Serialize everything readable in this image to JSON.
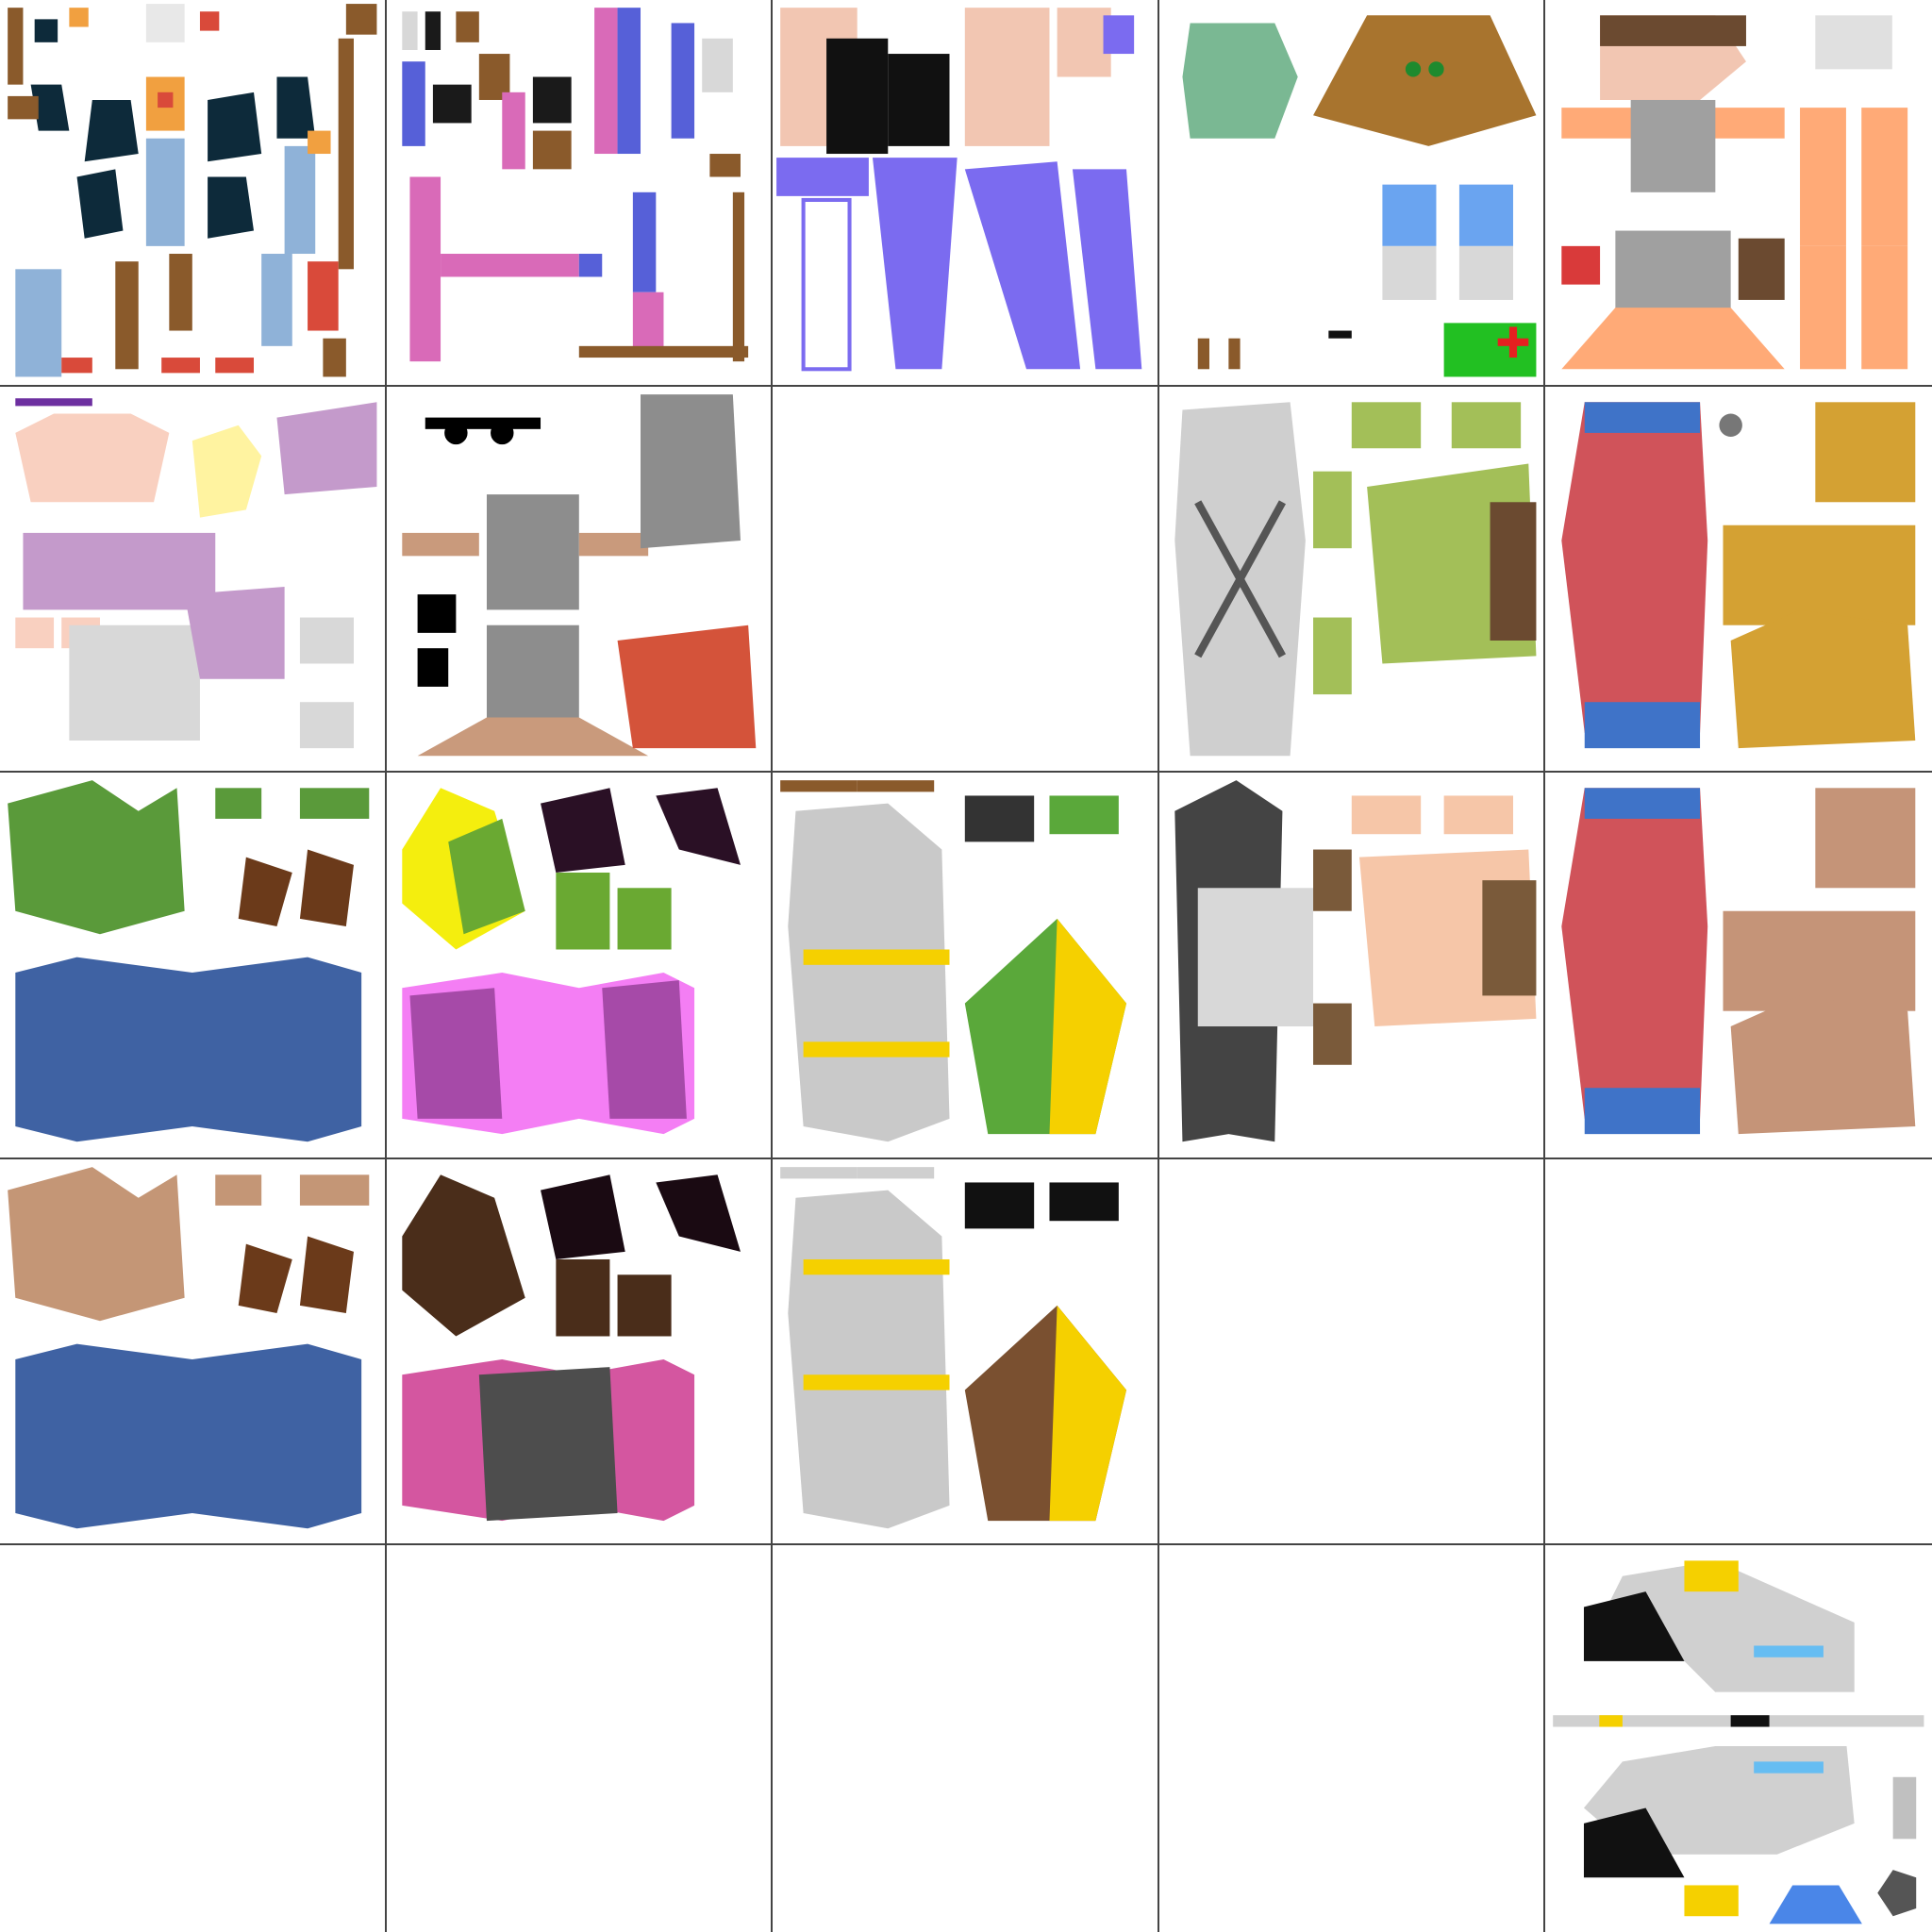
{
  "atlas": {
    "columns": 5,
    "rows": 5,
    "background": "#ffffff",
    "grid_line_color": "#444444",
    "cells": [
      {
        "id": "c00",
        "content": "assorted-small-parts",
        "colors": [
          "#0d2a3a",
          "#8a5a2b",
          "#8fb2d8",
          "#d94a3a",
          "#f1a040"
        ]
      },
      {
        "id": "c01",
        "content": "limbs-pink-blue",
        "colors": [
          "#d96ab8",
          "#5660d8",
          "#8a5a2b",
          "#1a1a1a"
        ]
      },
      {
        "id": "c02",
        "content": "dress-purple-skin",
        "colors": [
          "#7b6bf0",
          "#f2c6b2",
          "#111111"
        ]
      },
      {
        "id": "c03",
        "content": "head-hair-green",
        "colors": [
          "#7ab893",
          "#a8742e",
          "#6aa4f0",
          "#d8d8d8",
          "#22c022",
          "#e52020"
        ]
      },
      {
        "id": "c04",
        "content": "orange-body-armor",
        "colors": [
          "#ffaa77",
          "#a0a0a0",
          "#6b4a30",
          "#d93a3a"
        ]
      },
      {
        "id": "c10",
        "content": "lilac-body-glasses",
        "colors": [
          "#c49acb",
          "#f9d0c0",
          "#fff3a0",
          "#d8d8d8",
          "#6d2fa0"
        ]
      },
      {
        "id": "c11",
        "content": "gray-body-sunglasses",
        "colors": [
          "#8d8d8d",
          "#c99a7c",
          "#d4533a",
          "#000000"
        ]
      },
      {
        "id": "c12",
        "content": "empty",
        "colors": []
      },
      {
        "id": "c13",
        "content": "alien-green-harness",
        "colors": [
          "#a3bf58",
          "#cfcfcf",
          "#6b4a30"
        ]
      },
      {
        "id": "c14",
        "content": "red-shirt-mustard-head",
        "colors": [
          "#d0535a",
          "#3f73c8",
          "#d4a133"
        ]
      },
      {
        "id": "c20",
        "content": "green-head-blue-suit",
        "colors": [
          "#5a9a3a",
          "#3f62a3",
          "#6b3a1a"
        ]
      },
      {
        "id": "c21",
        "content": "pink-top-green-alien",
        "colors": [
          "#f4ee0e",
          "#6aa932",
          "#2a1025",
          "#f47ef4",
          "#a64aa8"
        ]
      },
      {
        "id": "c22",
        "content": "gray-suit-green-yellow-head",
        "colors": [
          "#c9c9c9",
          "#f5d000",
          "#5aa83a",
          "#c2502a"
        ]
      },
      {
        "id": "c23",
        "content": "tux-skin-head",
        "colors": [
          "#444444",
          "#f6c6a8",
          "#d8d8d8",
          "#7a5a3a"
        ]
      },
      {
        "id": "c24",
        "content": "red-shirt-tan-head",
        "colors": [
          "#d0535a",
          "#3f73c8",
          "#c59478"
        ]
      },
      {
        "id": "c30",
        "content": "tan-head-blue-suit",
        "colors": [
          "#c49676",
          "#3f62a3",
          "#6b3a1a"
        ]
      },
      {
        "id": "c31",
        "content": "dark-skin-pink-gray",
        "colors": [
          "#4a2d1a",
          "#d456a0",
          "#4d4d4d",
          "#1a0a12"
        ]
      },
      {
        "id": "c32",
        "content": "gray-suit-brown-yellow-head",
        "colors": [
          "#c9c9c9",
          "#f5d000",
          "#7a5030",
          "#c2502a"
        ]
      },
      {
        "id": "c33",
        "content": "empty",
        "colors": []
      },
      {
        "id": "c34",
        "content": "empty",
        "colors": []
      },
      {
        "id": "c40",
        "content": "empty",
        "colors": []
      },
      {
        "id": "c41",
        "content": "empty",
        "colors": []
      },
      {
        "id": "c42",
        "content": "empty",
        "colors": []
      },
      {
        "id": "c43",
        "content": "empty",
        "colors": []
      },
      {
        "id": "c44",
        "content": "blaster-parts",
        "colors": [
          "#d0d0d0",
          "#111111",
          "#f5d000",
          "#66bdf2",
          "#4a86e8",
          "#555555"
        ]
      }
    ]
  }
}
